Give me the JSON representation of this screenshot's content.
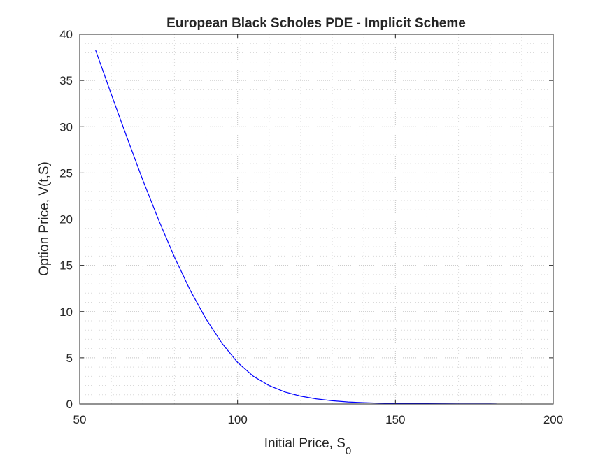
{
  "chart_data": {
    "type": "line",
    "title": "European Black Scholes PDE - Implicit Scheme",
    "xlabel": "Initial Price, S",
    "xlabel_subscript": "0",
    "ylabel": "Option Price, V(t,S)",
    "xlim": [
      50,
      200
    ],
    "ylim": [
      0,
      40
    ],
    "xticks": [
      50,
      100,
      150,
      200
    ],
    "yticks": [
      0,
      5,
      10,
      15,
      20,
      25,
      30,
      35,
      40
    ],
    "grid": "on",
    "minor_grid": "on",
    "series": [
      {
        "color": "#0000ff",
        "x": [
          55,
          60,
          65,
          70,
          75,
          80,
          85,
          90,
          95,
          100,
          105,
          110,
          115,
          120,
          125,
          130,
          135,
          140,
          145,
          150,
          155,
          160,
          165,
          170,
          175,
          180,
          182
        ],
        "y": [
          38.3,
          33.5,
          28.8,
          24.2,
          19.9,
          15.9,
          12.3,
          9.2,
          6.6,
          4.5,
          3.0,
          2.0,
          1.3,
          0.85,
          0.55,
          0.35,
          0.22,
          0.14,
          0.09,
          0.06,
          0.04,
          0.03,
          0.02,
          0.015,
          0.01,
          0.007,
          0.005
        ]
      }
    ]
  }
}
